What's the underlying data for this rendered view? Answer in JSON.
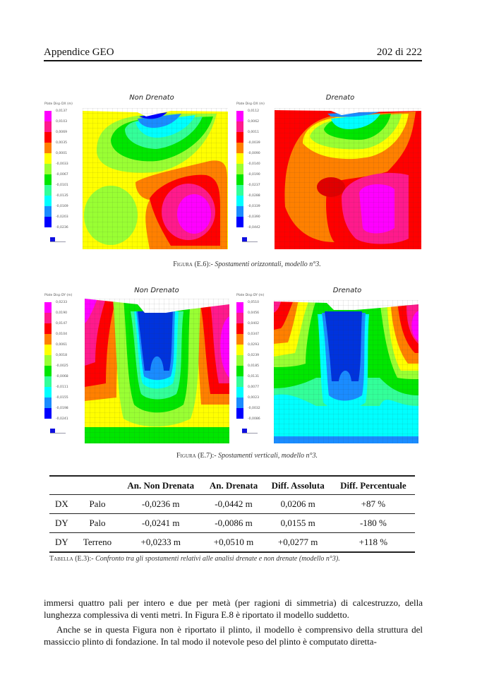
{
  "header": {
    "left": "Appendice GEO",
    "right": "202 di 222"
  },
  "figure_e6": {
    "panels": [
      {
        "title": "Non Drenato",
        "legend_title": "Plate Disp DX (m)",
        "legend_labels": [
          "0,0137",
          "0,0103",
          "0,0069",
          "0,0035",
          "0,0001",
          "-0,0033",
          "-0,0067",
          "-0,0101",
          "-0,0135",
          "-0,0169",
          "-0,0203",
          "-0,0236"
        ]
      },
      {
        "title": "Drenato",
        "legend_title": "Plate Disp DX (m)",
        "legend_labels": [
          "0,0112",
          "0,0062",
          "0,0011",
          "-0,0039",
          "-0,0090",
          "-0,0140",
          "-0,0190",
          "-0,0237",
          "-0,0288",
          "-0,0339",
          "-0,0390",
          "-0,0442"
        ]
      }
    ],
    "caption_label": "Figura (E.6)",
    "caption_sep": ":- ",
    "caption_text": "Spostamenti orizzontali, modello n°3."
  },
  "figure_e7": {
    "panels": [
      {
        "title": "Non Drenato",
        "legend_title": "Plate Disp DY (m)",
        "legend_labels": [
          "0,0233",
          "0,0190",
          "0,0147",
          "0,0104",
          "0,0061",
          "0,0018",
          "-0,0025",
          "-0,0068",
          "-0,0111",
          "-0,0155",
          "-0,0198",
          "-0,0241"
        ]
      },
      {
        "title": "Drenato",
        "legend_title": "Plate Disp DY (m)",
        "legend_labels": [
          "0,0510",
          "0,0456",
          "0,0402",
          "0,0347",
          "0,0293",
          "0,0239",
          "0,0185",
          "0,0131",
          "0,0077",
          "0,0023",
          "-0,0032",
          "-0,0086"
        ]
      }
    ],
    "caption_label": "Figura (E.7)",
    "caption_sep": ":- ",
    "caption_text": "Spostamenti verticali, modello n°3."
  },
  "legend_colors": [
    "#ff00ff",
    "#ff1a8c",
    "#ff0000",
    "#ff8000",
    "#ffff00",
    "#99ff33",
    "#00e600",
    "#33ff99",
    "#00ffff",
    "#1a8cff",
    "#0000ff"
  ],
  "table": {
    "headers": [
      "",
      "",
      "An. Non Drenata",
      "An. Drenata",
      "Diff. Assoluta",
      "Diff. Percentuale"
    ],
    "rows": [
      [
        "DX",
        "Palo",
        "-0,0236 m",
        "-0,0442 m",
        "0,0206 m",
        "+87 %"
      ],
      [
        "DY",
        "Palo",
        "-0,0241 m",
        "-0,0086 m",
        "0,0155 m",
        "-180 %"
      ],
      [
        "DY",
        "Terreno",
        "+0,0233 m",
        "+0,0510 m",
        "+0,0277 m",
        "+118 %"
      ]
    ],
    "caption_label": "Tabella (E.3)",
    "caption_sep": ":- ",
    "caption_text": "Confronto tra gli spostamenti relativi alle analisi drenate e non drenate (modello n°3)."
  },
  "body": {
    "paragraph1": "immersi quattro pali per intero e due per metà (per ragioni di simmetria) di calcestruzzo, della lunghezza complessiva di venti metri. In Figura E.8 è riportato il modello suddetto.",
    "paragraph2": "Anche se in questa Figura non è riportato il plinto, il modello è comprensivo della struttura del massiccio plinto di fondazione. In tal modo il notevole peso del plinto è computato diretta-"
  }
}
